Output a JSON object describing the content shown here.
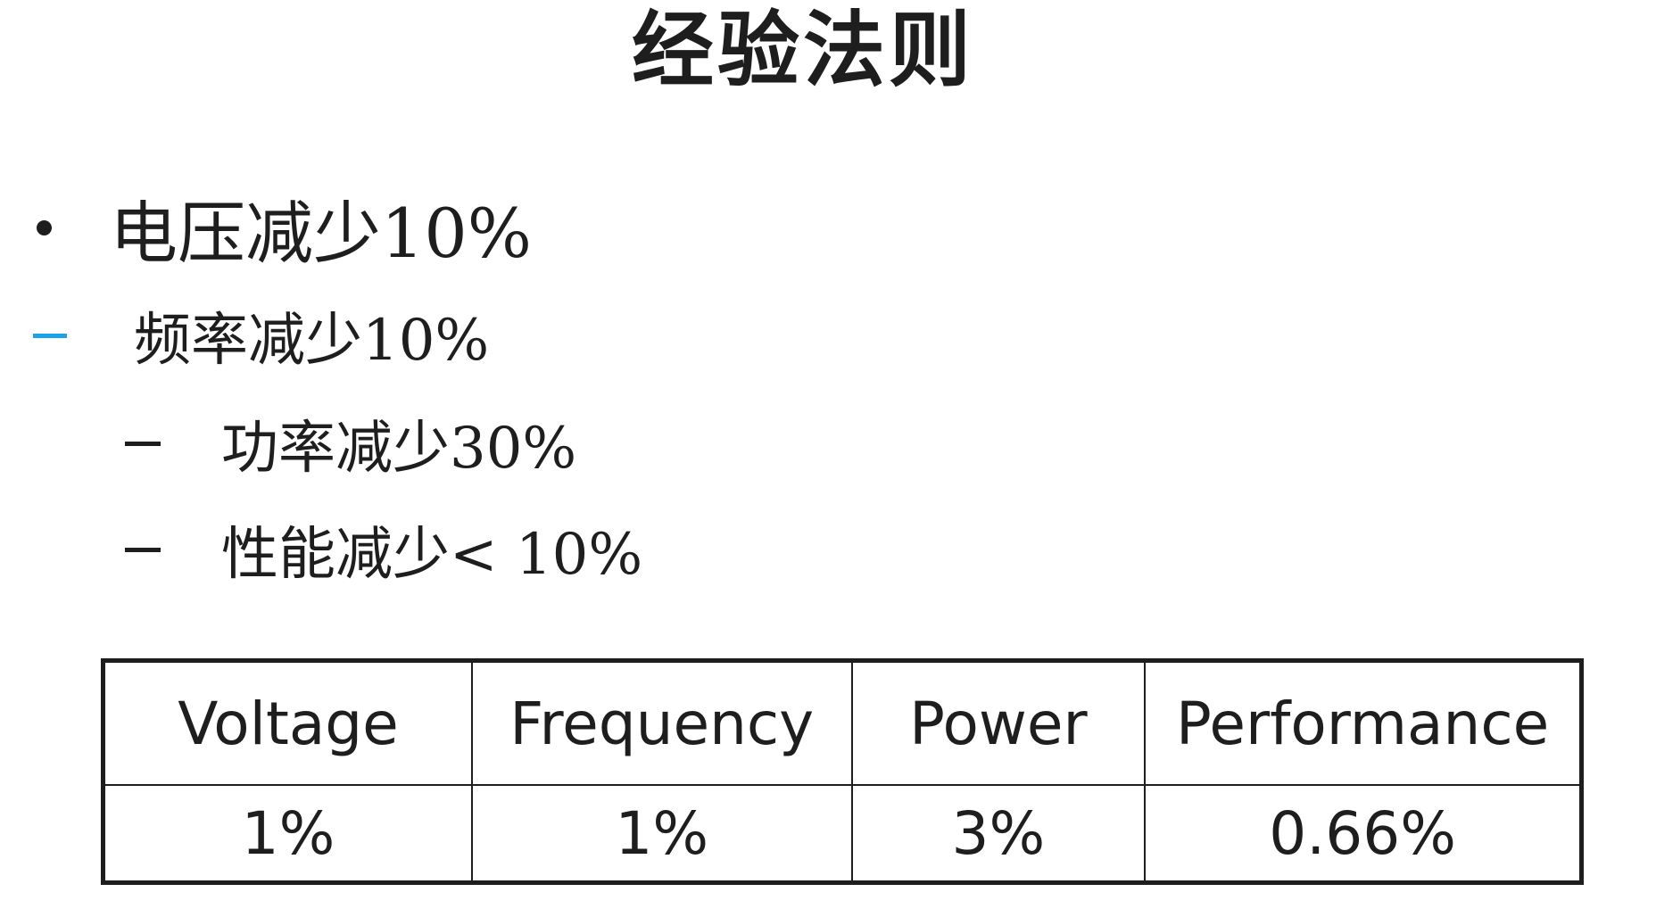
{
  "slide": {
    "title": "经验法则",
    "bullets": [
      {
        "marker": "dot-icon",
        "text": "电压减少10%"
      },
      {
        "marker": "blue-dash-icon",
        "text": "频率减少10%"
      },
      {
        "marker": "dash-icon",
        "text": "功率减少30%"
      },
      {
        "marker": "dash-icon",
        "text": "性能减少< 10%"
      }
    ],
    "colors": {
      "text": "#1e1e1e",
      "accent_dash": "#1aa3e8"
    }
  },
  "table": {
    "headers": [
      "Voltage",
      "Frequency",
      "Power",
      "Performance"
    ],
    "rows": [
      [
        "1%",
        "1%",
        "3%",
        "0.66%"
      ]
    ]
  }
}
